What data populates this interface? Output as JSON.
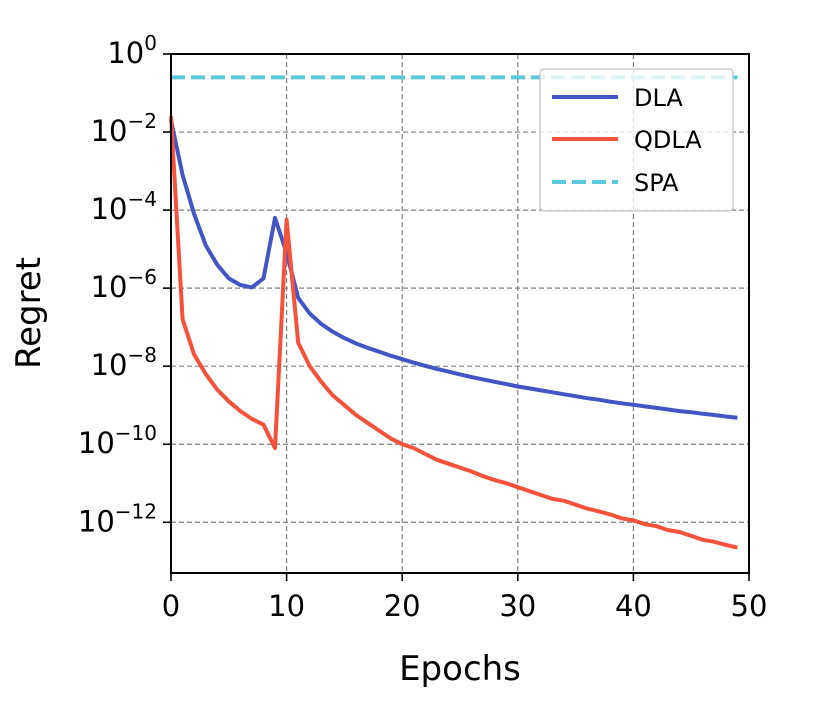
{
  "chart_data": {
    "type": "line",
    "title": "",
    "xlabel": "Epochs",
    "ylabel": "Regret",
    "xlim": [
      0,
      50
    ],
    "ylim_log10": [
      -13.3,
      0
    ],
    "yscale": "log",
    "grid": true,
    "legend_position": "upper-right",
    "x_ticks": [
      {
        "value": 0,
        "label": "0"
      },
      {
        "value": 10,
        "label": "10"
      },
      {
        "value": 20,
        "label": "20"
      },
      {
        "value": 30,
        "label": "30"
      },
      {
        "value": 40,
        "label": "40"
      },
      {
        "value": 50,
        "label": "50"
      }
    ],
    "y_ticks": [
      {
        "exp": 0,
        "base": "10",
        "power": "0"
      },
      {
        "exp": -2,
        "base": "10",
        "power": "−2"
      },
      {
        "exp": -4,
        "base": "10",
        "power": "−4"
      },
      {
        "exp": -6,
        "base": "10",
        "power": "−6"
      },
      {
        "exp": -8,
        "base": "10",
        "power": "−8"
      },
      {
        "exp": -10,
        "base": "10",
        "power": "−10"
      },
      {
        "exp": -12,
        "base": "10",
        "power": "−12"
      }
    ],
    "series": [
      {
        "name": "DLA",
        "color": "#4355c5",
        "dash": "solid",
        "x": [
          0,
          1,
          2,
          3,
          4,
          5,
          6,
          7,
          8,
          9,
          10,
          11,
          12,
          13,
          14,
          15,
          16,
          17,
          18,
          19,
          20,
          21,
          22,
          23,
          24,
          25,
          26,
          27,
          28,
          29,
          30,
          31,
          32,
          33,
          34,
          35,
          36,
          37,
          38,
          39,
          40,
          41,
          42,
          43,
          44,
          45,
          46,
          47,
          48,
          49
        ],
        "log10_y": [
          -1.7,
          -3.1,
          -4.1,
          -4.9,
          -5.4,
          -5.75,
          -5.92,
          -5.98,
          -5.75,
          -4.2,
          -5.1,
          -6.25,
          -6.65,
          -6.92,
          -7.12,
          -7.28,
          -7.42,
          -7.53,
          -7.63,
          -7.73,
          -7.82,
          -7.91,
          -7.99,
          -8.07,
          -8.14,
          -8.21,
          -8.28,
          -8.34,
          -8.4,
          -8.46,
          -8.52,
          -8.57,
          -8.62,
          -8.67,
          -8.72,
          -8.77,
          -8.82,
          -8.86,
          -8.91,
          -8.95,
          -8.99,
          -9.03,
          -9.07,
          -9.11,
          -9.15,
          -9.18,
          -9.22,
          -9.25,
          -9.29,
          -9.32
        ]
      },
      {
        "name": "QDLA",
        "color": "#f4523b",
        "dash": "solid",
        "x": [
          0,
          1,
          2,
          3,
          4,
          5,
          6,
          7,
          8,
          9,
          10,
          11,
          12,
          13,
          14,
          15,
          16,
          17,
          18,
          19,
          20,
          21,
          22,
          23,
          24,
          25,
          26,
          27,
          28,
          29,
          30,
          31,
          32,
          33,
          34,
          35,
          36,
          37,
          38,
          39,
          40,
          41,
          42,
          43,
          44,
          45,
          46,
          47,
          48,
          49
        ],
        "log10_y": [
          -1.6,
          -6.8,
          -7.7,
          -8.2,
          -8.6,
          -8.9,
          -9.15,
          -9.35,
          -9.5,
          -10.1,
          -4.25,
          -7.4,
          -8.0,
          -8.4,
          -8.75,
          -9.0,
          -9.25,
          -9.45,
          -9.65,
          -9.85,
          -10.0,
          -10.1,
          -10.25,
          -10.4,
          -10.5,
          -10.6,
          -10.7,
          -10.82,
          -10.92,
          -11.0,
          -11.1,
          -11.2,
          -11.3,
          -11.4,
          -11.45,
          -11.55,
          -11.65,
          -11.72,
          -11.8,
          -11.9,
          -11.95,
          -12.05,
          -12.1,
          -12.2,
          -12.25,
          -12.35,
          -12.45,
          -12.5,
          -12.58,
          -12.65
        ]
      },
      {
        "name": "SPA",
        "color": "#5bc8dc",
        "dash": "dashed",
        "x": [
          0,
          49
        ],
        "log10_y": [
          -0.6,
          -0.6
        ]
      }
    ]
  }
}
